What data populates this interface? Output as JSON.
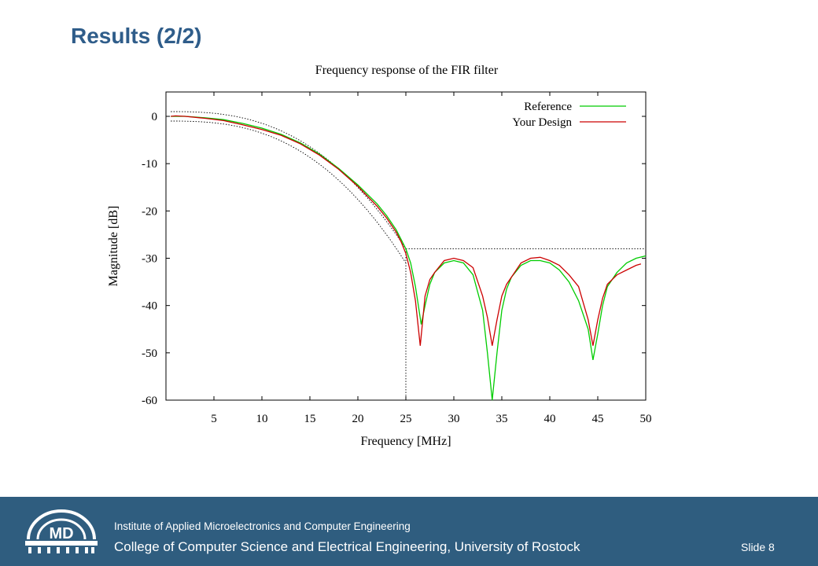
{
  "slide": {
    "title": "Results (2/2)",
    "slide_number": "Slide 8"
  },
  "footer": {
    "institute": "Institute of Applied Microelectronics and Computer Engineering",
    "college": "College of Computer Science and Electrical Engineering, University of Rostock",
    "logo_text": "MD"
  },
  "colors": {
    "title": "#2f5d8a",
    "footer_bg": "#2f5d7f",
    "reference": "#00cc00",
    "design": "#cc0000"
  },
  "chart_data": {
    "type": "line",
    "title": "Frequency response of the FIR filter",
    "xlabel": "Frequency [MHz]",
    "ylabel": "Magnitude [dB]",
    "xlim": [
      0,
      50
    ],
    "ylim": [
      -60,
      5
    ],
    "xticks": [
      5,
      10,
      15,
      20,
      25,
      30,
      35,
      40,
      45,
      50
    ],
    "yticks": [
      0,
      -10,
      -20,
      -30,
      -40,
      -50,
      -60
    ],
    "legend_position": "top-right",
    "grid": false,
    "series": [
      {
        "name": "Reference",
        "color": "#00cc00",
        "x": [
          0.5,
          2,
          4,
          6,
          8,
          10,
          12,
          14,
          16,
          18,
          20,
          22,
          23,
          24,
          24.5,
          25,
          25.5,
          26,
          26.3,
          26.6,
          27,
          27.5,
          28,
          29,
          30,
          31,
          32,
          33,
          33.5,
          34,
          34.5,
          35,
          35.5,
          36,
          37,
          38,
          39,
          40,
          41,
          42,
          43,
          44,
          44.5,
          45,
          45.5,
          46,
          47,
          48,
          49,
          50
        ],
        "y": [
          0,
          0,
          -0.3,
          -0.7,
          -1.5,
          -2.5,
          -3.8,
          -5.6,
          -8,
          -11,
          -14.5,
          -18.5,
          -21,
          -24,
          -26,
          -28,
          -31,
          -36,
          -40,
          -44,
          -40,
          -35.5,
          -33,
          -31,
          -30.5,
          -31,
          -33.5,
          -41,
          -50,
          -62,
          -50,
          -41,
          -36.5,
          -34,
          -31.5,
          -30.5,
          -30.5,
          -31,
          -32.5,
          -35,
          -39,
          -45,
          -51.5,
          -46,
          -40,
          -36,
          -33,
          -31,
          -30,
          -29.5
        ]
      },
      {
        "name": "Your Design",
        "color": "#cc0000",
        "x": [
          0.5,
          1,
          2,
          4,
          6,
          8,
          10,
          12,
          14,
          16,
          18,
          20,
          22,
          23,
          24,
          24.5,
          25,
          25.5,
          26,
          26.5,
          27,
          27.5,
          28,
          29,
          30,
          31,
          32,
          33,
          33.5,
          34,
          34.5,
          35,
          35.5,
          36,
          37,
          38,
          39,
          40,
          41,
          42,
          43,
          44,
          44.5,
          45,
          45.5,
          46,
          47,
          48,
          49,
          49.5
        ],
        "y": [
          0,
          0.1,
          0,
          -0.4,
          -0.9,
          -1.8,
          -2.8,
          -4,
          -5.8,
          -8.2,
          -11.2,
          -14.8,
          -19,
          -21.5,
          -24.5,
          -26.5,
          -29,
          -33,
          -39,
          -48.5,
          -38,
          -34.5,
          -33,
          -30.5,
          -30,
          -30.5,
          -32,
          -38,
          -42.5,
          -48.5,
          -43,
          -38,
          -35.5,
          -34,
          -31,
          -30,
          -29.8,
          -30.5,
          -31.5,
          -33.5,
          -36,
          -43,
          -48.5,
          -43,
          -38.5,
          -35.5,
          -33.5,
          -32.5,
          -31.5,
          -31.2
        ]
      }
    ],
    "bounds": {
      "passband_upper": {
        "x": [
          0.5,
          25
        ],
        "y": [
          1,
          -28
        ]
      },
      "passband_lower": {
        "x": [
          0.5,
          25
        ],
        "y": [
          -1,
          -31
        ]
      },
      "stopband": {
        "x": [
          25,
          50
        ],
        "y": [
          -28,
          -28
        ]
      },
      "cutoff_vertical": {
        "x": [
          25,
          25
        ],
        "y": [
          -28,
          -60
        ]
      }
    }
  }
}
